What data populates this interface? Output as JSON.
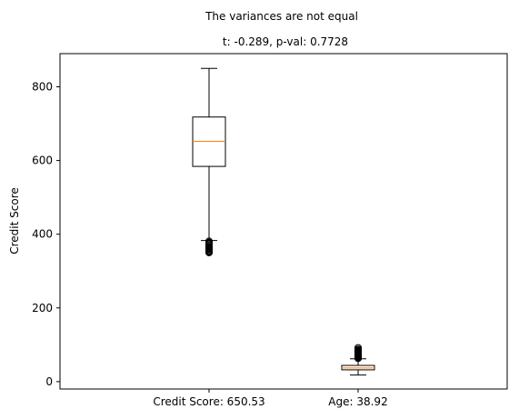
{
  "chart_data": {
    "type": "box",
    "suptitle": "The variances are not equal",
    "title": "t: -0.289, p-val: 0.7728",
    "xlabel": "",
    "ylabel": "Credit Score",
    "ylim": [
      -20,
      890
    ],
    "yticks": [
      0,
      200,
      400,
      600,
      800
    ],
    "grid": false,
    "categories": [
      "Credit Score: 650.53",
      "Age: 38.92"
    ],
    "boxes": [
      {
        "label": "Credit Score: 650.53",
        "whisker_low": 383,
        "q1": 584,
        "median": 652,
        "q3": 718,
        "whisker_high": 850,
        "outliers": [
          350,
          351,
          353,
          355,
          358,
          359,
          361,
          363,
          365,
          367,
          370,
          373,
          376,
          378,
          381
        ]
      },
      {
        "label": "Age: 38.92",
        "whisker_low": 18,
        "q1": 32,
        "median": 37,
        "q3": 44,
        "whisker_high": 62,
        "outliers": [
          63,
          64,
          65,
          66,
          67,
          68,
          69,
          70,
          71,
          72,
          73,
          74,
          75,
          76,
          77,
          78,
          79,
          80,
          81,
          82,
          83,
          84,
          85,
          88,
          92
        ]
      }
    ],
    "colors": {
      "box": "#000000",
      "median": "#ff7f0e",
      "axes": "#000000"
    }
  }
}
